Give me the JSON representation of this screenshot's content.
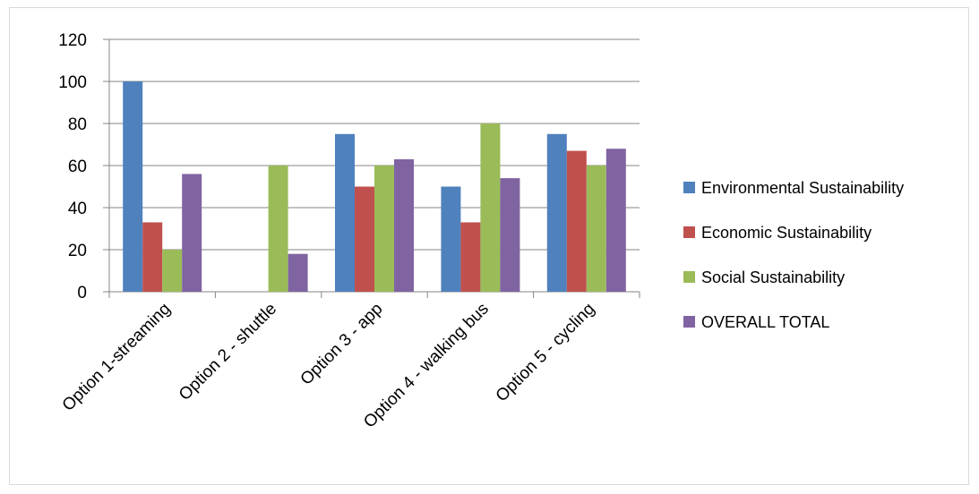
{
  "chart_data": {
    "type": "bar",
    "categories": [
      "Option 1-streaming",
      "Option 2 - shuttle",
      "Option 3 - app",
      "Option 4 - walking bus",
      "Option 5 - cycling"
    ],
    "series": [
      {
        "name": "Environmental Sustainability",
        "color": "#4f81bd",
        "values": [
          100,
          0,
          75,
          50,
          75
        ]
      },
      {
        "name": "Economic Sustainability",
        "color": "#c0504d",
        "values": [
          33,
          0,
          50,
          33,
          67
        ]
      },
      {
        "name": "Social Sustainability",
        "color": "#9bbb59",
        "values": [
          20,
          60,
          60,
          80,
          60
        ]
      },
      {
        "name": "OVERALL TOTAL",
        "color": "#8064a2",
        "values": [
          56,
          18,
          63,
          54,
          68
        ]
      }
    ],
    "yticks": [
      0,
      20,
      40,
      60,
      80,
      100,
      120
    ],
    "ylim": [
      0,
      120
    ],
    "grid": true,
    "legend": "right",
    "title": "",
    "xlabel": "",
    "ylabel": ""
  }
}
